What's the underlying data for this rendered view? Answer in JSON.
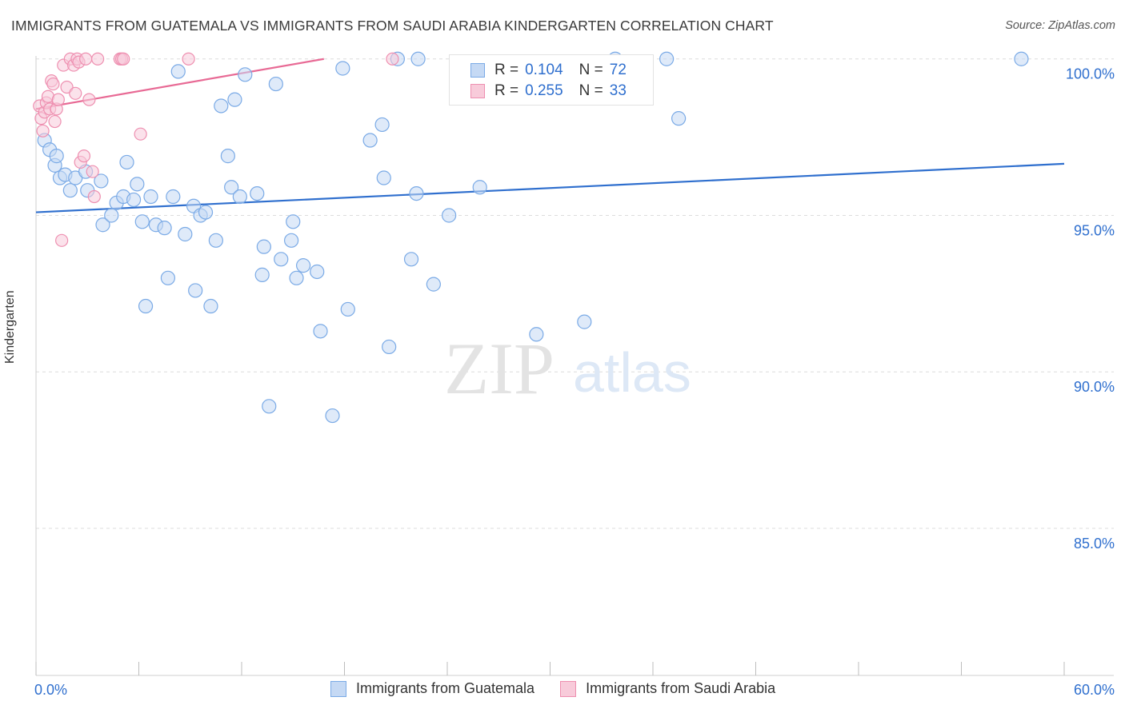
{
  "title": "IMMIGRANTS FROM GUATEMALA VS IMMIGRANTS FROM SAUDI ARABIA KINDERGARTEN CORRELATION CHART",
  "source": "Source: ZipAtlas.com",
  "watermark": {
    "zip": "ZIP",
    "atlas": "atlas"
  },
  "legend": {
    "r_label": "R =",
    "n_label": "N =",
    "items": [
      {
        "name": "Immigrants from Guatemala",
        "r": "0.104",
        "n": "72",
        "color": "#7aaae6",
        "fill": "#c5d9f4"
      },
      {
        "name": "Immigrants from Saudi Arabia",
        "r": "0.255",
        "n": "33",
        "color": "#ee8fb0",
        "fill": "#f8cbda"
      }
    ]
  },
  "chart_data": {
    "type": "scatter",
    "ylabel": "Kindergarten",
    "xlim": [
      0,
      60
    ],
    "ylim": [
      80.3,
      100.3
    ],
    "x_tick_labels": [
      "0.0%",
      "60.0%"
    ],
    "y_ticks": [
      85,
      90,
      95,
      100
    ],
    "y_tick_labels": [
      "85.0%",
      "90.0%",
      "95.0%",
      "100.0%"
    ],
    "grid": true,
    "series": [
      {
        "name": "Immigrants from Guatemala",
        "color": "#2f6fce",
        "point_color": "#7aaae6",
        "trend": {
          "x": [
            0,
            60
          ],
          "y": [
            95.1,
            96.65
          ]
        },
        "points": [
          [
            0.5,
            97.4
          ],
          [
            0.8,
            97.1
          ],
          [
            1.1,
            96.6
          ],
          [
            1.4,
            96.2
          ],
          [
            1.7,
            96.3
          ],
          [
            2.0,
            95.8
          ],
          [
            2.3,
            96.2
          ],
          [
            2.9,
            96.4
          ],
          [
            3.0,
            95.8
          ],
          [
            3.8,
            96.1
          ],
          [
            3.9,
            94.7
          ],
          [
            4.4,
            95.0
          ],
          [
            4.7,
            95.4
          ],
          [
            5.1,
            95.6
          ],
          [
            5.3,
            96.7
          ],
          [
            5.7,
            95.5
          ],
          [
            5.9,
            96.0
          ],
          [
            6.2,
            94.8
          ],
          [
            6.4,
            92.1
          ],
          [
            6.7,
            95.6
          ],
          [
            7.0,
            94.7
          ],
          [
            7.5,
            94.6
          ],
          [
            7.7,
            93.0
          ],
          [
            8.0,
            95.6
          ],
          [
            8.3,
            99.6
          ],
          [
            8.7,
            94.4
          ],
          [
            9.2,
            95.3
          ],
          [
            9.3,
            92.6
          ],
          [
            9.6,
            95.0
          ],
          [
            9.9,
            95.1
          ],
          [
            10.2,
            92.1
          ],
          [
            10.5,
            94.2
          ],
          [
            10.8,
            98.5
          ],
          [
            11.2,
            96.9
          ],
          [
            11.4,
            95.9
          ],
          [
            11.6,
            98.7
          ],
          [
            11.9,
            95.6
          ],
          [
            12.2,
            99.5
          ],
          [
            12.9,
            95.7
          ],
          [
            13.3,
            94.0
          ],
          [
            13.2,
            93.1
          ],
          [
            13.6,
            88.9
          ],
          [
            14.0,
            99.2
          ],
          [
            14.3,
            93.6
          ],
          [
            14.9,
            94.2
          ],
          [
            15.0,
            94.8
          ],
          [
            15.2,
            93.0
          ],
          [
            15.6,
            93.4
          ],
          [
            16.4,
            93.2
          ],
          [
            16.6,
            91.3
          ],
          [
            17.3,
            88.6
          ],
          [
            17.9,
            99.7
          ],
          [
            18.2,
            92.0
          ],
          [
            19.5,
            97.4
          ],
          [
            20.2,
            97.9
          ],
          [
            20.3,
            96.2
          ],
          [
            20.6,
            90.8
          ],
          [
            21.1,
            100.0
          ],
          [
            21.9,
            93.6
          ],
          [
            22.2,
            95.7
          ],
          [
            22.3,
            100.0
          ],
          [
            23.2,
            92.8
          ],
          [
            24.1,
            95.0
          ],
          [
            24.8,
            99.2
          ],
          [
            25.9,
            95.9
          ],
          [
            29.2,
            91.2
          ],
          [
            32.0,
            91.6
          ],
          [
            33.8,
            100.0
          ],
          [
            36.8,
            100.0
          ],
          [
            37.5,
            98.1
          ],
          [
            57.5,
            100.0
          ],
          [
            1.2,
            96.9
          ]
        ]
      },
      {
        "name": "Immigrants from Saudi Arabia",
        "color": "#e86a95",
        "point_color": "#ee8fb0",
        "trend": {
          "x": [
            0,
            16.8
          ],
          "y": [
            98.4,
            100.0
          ]
        },
        "points": [
          [
            0.2,
            98.5
          ],
          [
            0.3,
            98.1
          ],
          [
            0.4,
            97.7
          ],
          [
            0.5,
            98.3
          ],
          [
            0.6,
            98.6
          ],
          [
            0.7,
            98.8
          ],
          [
            0.8,
            98.4
          ],
          [
            0.9,
            99.3
          ],
          [
            1.0,
            99.2
          ],
          [
            1.1,
            98.0
          ],
          [
            1.2,
            98.4
          ],
          [
            1.3,
            98.7
          ],
          [
            1.5,
            94.2
          ],
          [
            1.6,
            99.8
          ],
          [
            1.8,
            99.1
          ],
          [
            2.0,
            100.0
          ],
          [
            2.2,
            99.8
          ],
          [
            2.3,
            98.9
          ],
          [
            2.4,
            100.0
          ],
          [
            2.5,
            99.9
          ],
          [
            2.6,
            96.7
          ],
          [
            2.8,
            96.9
          ],
          [
            2.9,
            100.0
          ],
          [
            3.1,
            98.7
          ],
          [
            3.3,
            96.4
          ],
          [
            3.4,
            95.6
          ],
          [
            3.6,
            100.0
          ],
          [
            4.9,
            100.0
          ],
          [
            5.0,
            100.0
          ],
          [
            5.1,
            100.0
          ],
          [
            6.1,
            97.6
          ],
          [
            8.9,
            100.0
          ],
          [
            20.8,
            100.0
          ]
        ]
      }
    ]
  }
}
